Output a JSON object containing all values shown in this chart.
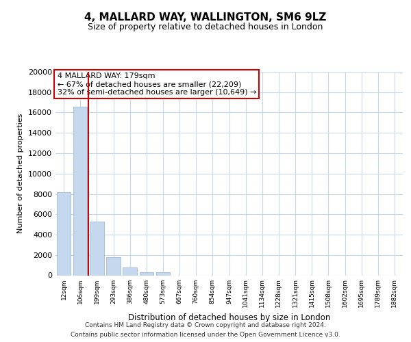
{
  "title": "4, MALLARD WAY, WALLINGTON, SM6 9LZ",
  "subtitle": "Size of property relative to detached houses in London",
  "xlabel": "Distribution of detached houses by size in London",
  "ylabel": "Number of detached properties",
  "bar_labels": [
    "12sqm",
    "106sqm",
    "199sqm",
    "293sqm",
    "386sqm",
    "480sqm",
    "573sqm",
    "667sqm",
    "760sqm",
    "854sqm",
    "947sqm",
    "1041sqm",
    "1134sqm",
    "1228sqm",
    "1321sqm",
    "1415sqm",
    "1508sqm",
    "1602sqm",
    "1695sqm",
    "1789sqm",
    "1882sqm"
  ],
  "bar_values": [
    8200,
    16600,
    5300,
    1800,
    750,
    300,
    270,
    0,
    0,
    0,
    0,
    0,
    0,
    0,
    0,
    0,
    0,
    0,
    0,
    0,
    0
  ],
  "bar_color": "#c5d8ee",
  "bar_edge_color": "#a0bcd8",
  "highlight_color": "#cc0000",
  "annotation_title": "4 MALLARD WAY: 179sqm",
  "annotation_line1": "← 67% of detached houses are smaller (22,209)",
  "annotation_line2": "32% of semi-detached houses are larger (10,649) →",
  "annotation_box_color": "#ffffff",
  "annotation_box_edge": "#cc0000",
  "ylim": [
    0,
    20000
  ],
  "yticks": [
    0,
    2000,
    4000,
    6000,
    8000,
    10000,
    12000,
    14000,
    16000,
    18000,
    20000
  ],
  "footnote1": "Contains HM Land Registry data © Crown copyright and database right 2024.",
  "footnote2": "Contains public sector information licensed under the Open Government Licence v3.0.",
  "background_color": "#ffffff",
  "grid_color": "#c8d8e8"
}
